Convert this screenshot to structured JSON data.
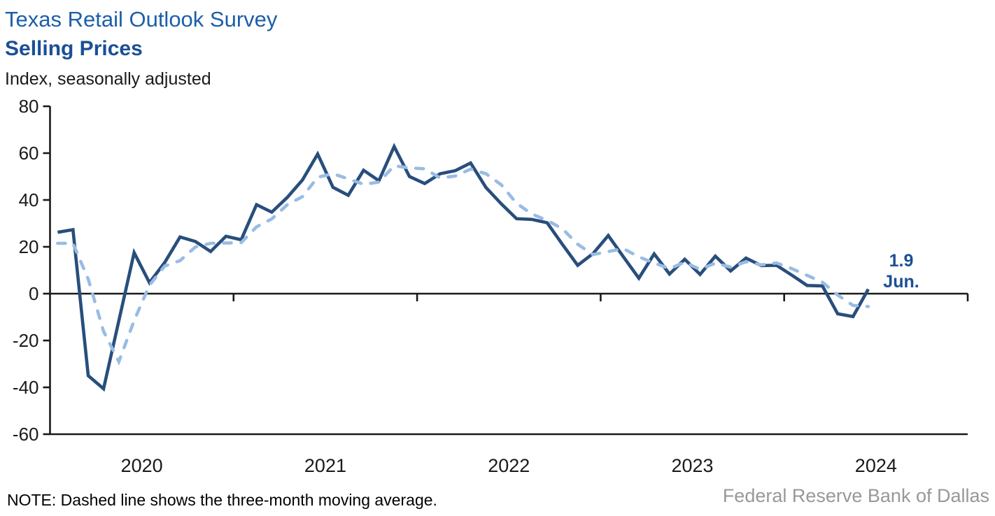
{
  "header": {
    "title": "Texas Retail Outlook Survey",
    "subtitle": "Selling Prices",
    "unit_label": "Index, seasonally adjusted"
  },
  "annotation": {
    "value": "1.9",
    "month": "Jun."
  },
  "note": "NOTE: Dashed line shows the three-month moving average.",
  "source": "Federal Reserve Bank of Dallas",
  "colors": {
    "title": "#1D5FA7",
    "subtitle": "#1A4F96",
    "annotation": "#1A4F96",
    "series_solid": "#284E7C",
    "series_dashed": "#99BCE3",
    "axis": "#1A1A1A",
    "source_text": "#989898"
  },
  "chart_data": {
    "type": "line",
    "title": "Texas Retail Outlook Survey — Selling Prices",
    "ylabel": "Index, seasonally adjusted",
    "ylim": [
      -60,
      80
    ],
    "y_ticks": [
      80,
      60,
      40,
      20,
      0,
      -20,
      -40,
      -60
    ],
    "x_year_labels": [
      "2020",
      "2021",
      "2022",
      "2023",
      "2024"
    ],
    "x_domain_months": [
      "2020-01",
      "2025-01"
    ],
    "grid": false,
    "legend_position": "none",
    "months": [
      "2020-01",
      "2020-02",
      "2020-03",
      "2020-04",
      "2020-05",
      "2020-06",
      "2020-07",
      "2020-08",
      "2020-09",
      "2020-10",
      "2020-11",
      "2020-12",
      "2021-01",
      "2021-02",
      "2021-03",
      "2021-04",
      "2021-05",
      "2021-06",
      "2021-07",
      "2021-08",
      "2021-09",
      "2021-10",
      "2021-11",
      "2021-12",
      "2022-01",
      "2022-02",
      "2022-03",
      "2022-04",
      "2022-05",
      "2022-06",
      "2022-07",
      "2022-08",
      "2022-09",
      "2022-10",
      "2022-11",
      "2022-12",
      "2023-01",
      "2023-02",
      "2023-03",
      "2023-04",
      "2023-05",
      "2023-06",
      "2023-07",
      "2023-08",
      "2023-09",
      "2023-10",
      "2023-11",
      "2023-12",
      "2024-01",
      "2024-02",
      "2024-03",
      "2024-04",
      "2024-05",
      "2024-06"
    ],
    "series": [
      {
        "name": "Selling prices index",
        "style": "solid",
        "values": [
          26.2,
          27.3,
          -35.0,
          -40.6,
          -11.5,
          17.5,
          4.7,
          13.3,
          24.2,
          22.3,
          18.0,
          24.5,
          23.0,
          38.0,
          34.8,
          41.0,
          48.5,
          59.6,
          45.4,
          42.0,
          52.7,
          48.2,
          62.8,
          50.0,
          47.0,
          51.2,
          52.5,
          55.8,
          45.3,
          38.4,
          32.0,
          31.7,
          30.3,
          21.0,
          12.1,
          17.1,
          24.8,
          15.6,
          6.6,
          17.0,
          8.4,
          14.7,
          8.2,
          16.0,
          9.7,
          15.2,
          12.0,
          12.1,
          7.9,
          3.5,
          3.3,
          -8.6,
          -9.8,
          1.9
        ]
      },
      {
        "name": "Three-month moving average",
        "style": "dashed",
        "values": [
          21.5,
          21.5,
          6.2,
          -16.1,
          -29.0,
          -11.5,
          3.6,
          11.8,
          14.1,
          19.9,
          21.5,
          21.6,
          21.8,
          28.5,
          31.9,
          37.9,
          41.4,
          49.7,
          51.2,
          49.0,
          46.7,
          47.6,
          54.6,
          53.7,
          53.3,
          49.4,
          50.2,
          53.2,
          51.2,
          46.5,
          38.6,
          34.0,
          31.3,
          27.7,
          21.1,
          16.7,
          18.0,
          19.2,
          15.7,
          13.1,
          10.7,
          13.4,
          10.4,
          13.0,
          11.3,
          13.6,
          12.3,
          13.1,
          10.7,
          7.8,
          4.9,
          -0.6,
          -5.0,
          -5.5
        ]
      }
    ],
    "last_point_label": {
      "value": "1.9",
      "month": "Jun."
    }
  }
}
